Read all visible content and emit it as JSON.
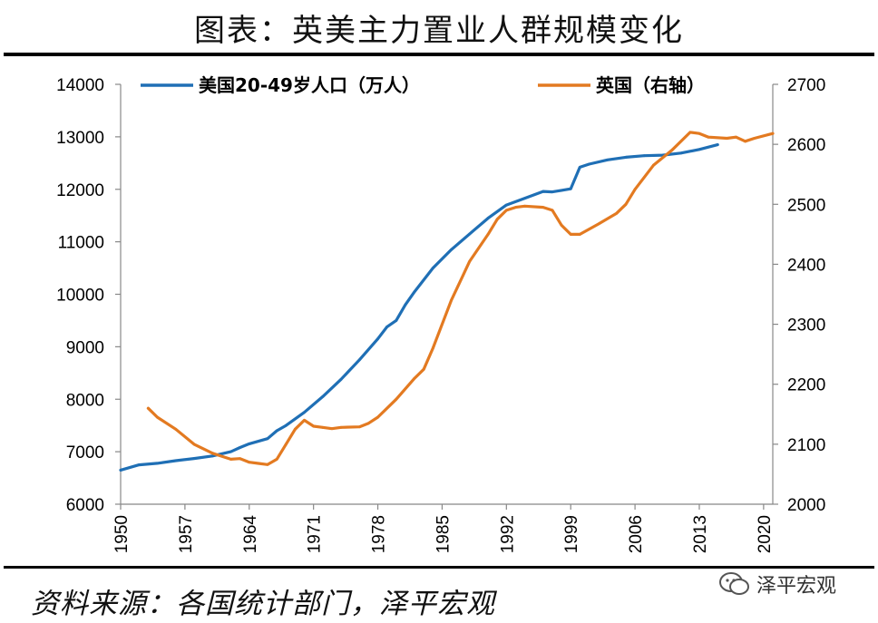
{
  "page": {
    "title": "图表：英美主力置业人群规模变化",
    "source": "资料来源：各国统计部门，泽平宏观",
    "watermark": "泽平宏观"
  },
  "chart_data": {
    "type": "line",
    "grid": false,
    "legend_placement": "top",
    "x_ticks": [
      "1950",
      "1957",
      "1964",
      "1971",
      "1978",
      "1985",
      "1992",
      "1999",
      "2006",
      "2013",
      "2020"
    ],
    "xlim": [
      1950,
      2021
    ],
    "y_left": {
      "ylim": [
        6000,
        14000
      ],
      "ticks": [
        "6000",
        "7000",
        "8000",
        "9000",
        "10000",
        "11000",
        "12000",
        "13000",
        "14000"
      ]
    },
    "y_right": {
      "ylim": [
        2000,
        2700
      ],
      "ticks": [
        "2000",
        "2100",
        "2200",
        "2300",
        "2400",
        "2500",
        "2600",
        "2700"
      ]
    },
    "series": [
      {
        "name": "美国20-49岁人口（万人）",
        "axis": "left",
        "color": "#1F6FB5",
        "x": [
          1950,
          1952,
          1954,
          1956,
          1958,
          1960,
          1962,
          1963,
          1964,
          1966,
          1967,
          1968,
          1970,
          1972,
          1974,
          1976,
          1978,
          1979,
          1980,
          1981,
          1982,
          1984,
          1986,
          1988,
          1990,
          1992,
          1994,
          1996,
          1997,
          1998,
          1999,
          2000,
          2001,
          2003,
          2005,
          2007,
          2009,
          2011,
          2013,
          2015
        ],
        "values": [
          6650,
          6750,
          6780,
          6830,
          6870,
          6920,
          7000,
          7080,
          7150,
          7250,
          7400,
          7500,
          7750,
          8050,
          8380,
          8750,
          9150,
          9380,
          9500,
          9800,
          10050,
          10500,
          10850,
          11150,
          11450,
          11700,
          11830,
          11960,
          11950,
          11980,
          12010,
          12420,
          12480,
          12560,
          12610,
          12640,
          12650,
          12690,
          12760,
          12850
        ]
      },
      {
        "name": "英国（右轴）",
        "axis": "right",
        "color": "#E37A21",
        "x": [
          1953,
          1954,
          1956,
          1958,
          1960,
          1961,
          1962,
          1963,
          1964,
          1965,
          1966,
          1967,
          1968,
          1969,
          1970,
          1971,
          1972,
          1973,
          1974,
          1976,
          1977,
          1978,
          1980,
          1982,
          1983,
          1984,
          1986,
          1988,
          1990,
          1991,
          1992,
          1993,
          1994,
          1996,
          1997,
          1998,
          1999,
          2000,
          2002,
          2004,
          2005,
          2006,
          2008,
          2010,
          2012,
          2013,
          2014,
          2016,
          2017,
          2018,
          2019,
          2021
        ],
        "values": [
          2160,
          2145,
          2125,
          2100,
          2085,
          2080,
          2075,
          2076,
          2070,
          2068,
          2066,
          2075,
          2100,
          2125,
          2140,
          2130,
          2128,
          2126,
          2128,
          2129,
          2135,
          2145,
          2175,
          2210,
          2225,
          2260,
          2340,
          2405,
          2450,
          2475,
          2490,
          2495,
          2497,
          2495,
          2490,
          2465,
          2450,
          2450,
          2467,
          2485,
          2500,
          2525,
          2565,
          2590,
          2620,
          2618,
          2612,
          2610,
          2612,
          2605,
          2610,
          2618
        ]
      }
    ]
  }
}
